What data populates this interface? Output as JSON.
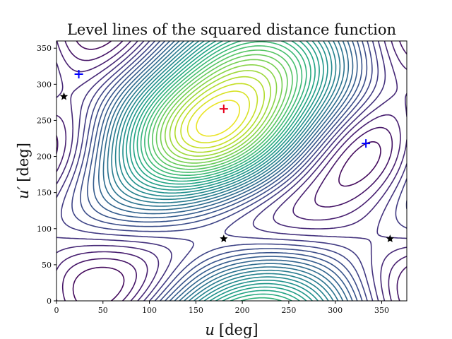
{
  "chart_data": {
    "type": "contour",
    "title": "Level lines of the squared distance function",
    "xlabel": {
      "symbol": "u",
      "unit": "[deg]"
    },
    "ylabel": {
      "symbol": "u′",
      "unit": "[deg]"
    },
    "xlim": [
      0,
      377
    ],
    "ylim": [
      0,
      360
    ],
    "xticks": [
      0,
      50,
      100,
      150,
      200,
      250,
      300,
      350
    ],
    "yticks": [
      0,
      50,
      100,
      150,
      200,
      250,
      300,
      350
    ],
    "grid": false,
    "colormap": "viridis",
    "markers": [
      {
        "kind": "plus",
        "color": "#0000ff",
        "x": 24,
        "y": 314
      },
      {
        "kind": "plus",
        "color": "#0000ff",
        "x": 333,
        "y": 218
      },
      {
        "kind": "plus",
        "color": "#e8001c",
        "x": 180,
        "y": 266
      },
      {
        "kind": "star",
        "color": "#000000",
        "x": 8,
        "y": 283
      },
      {
        "kind": "star",
        "color": "#000000",
        "x": 180,
        "y": 86
      },
      {
        "kind": "star",
        "color": "#000000",
        "x": 359,
        "y": 86
      }
    ]
  }
}
